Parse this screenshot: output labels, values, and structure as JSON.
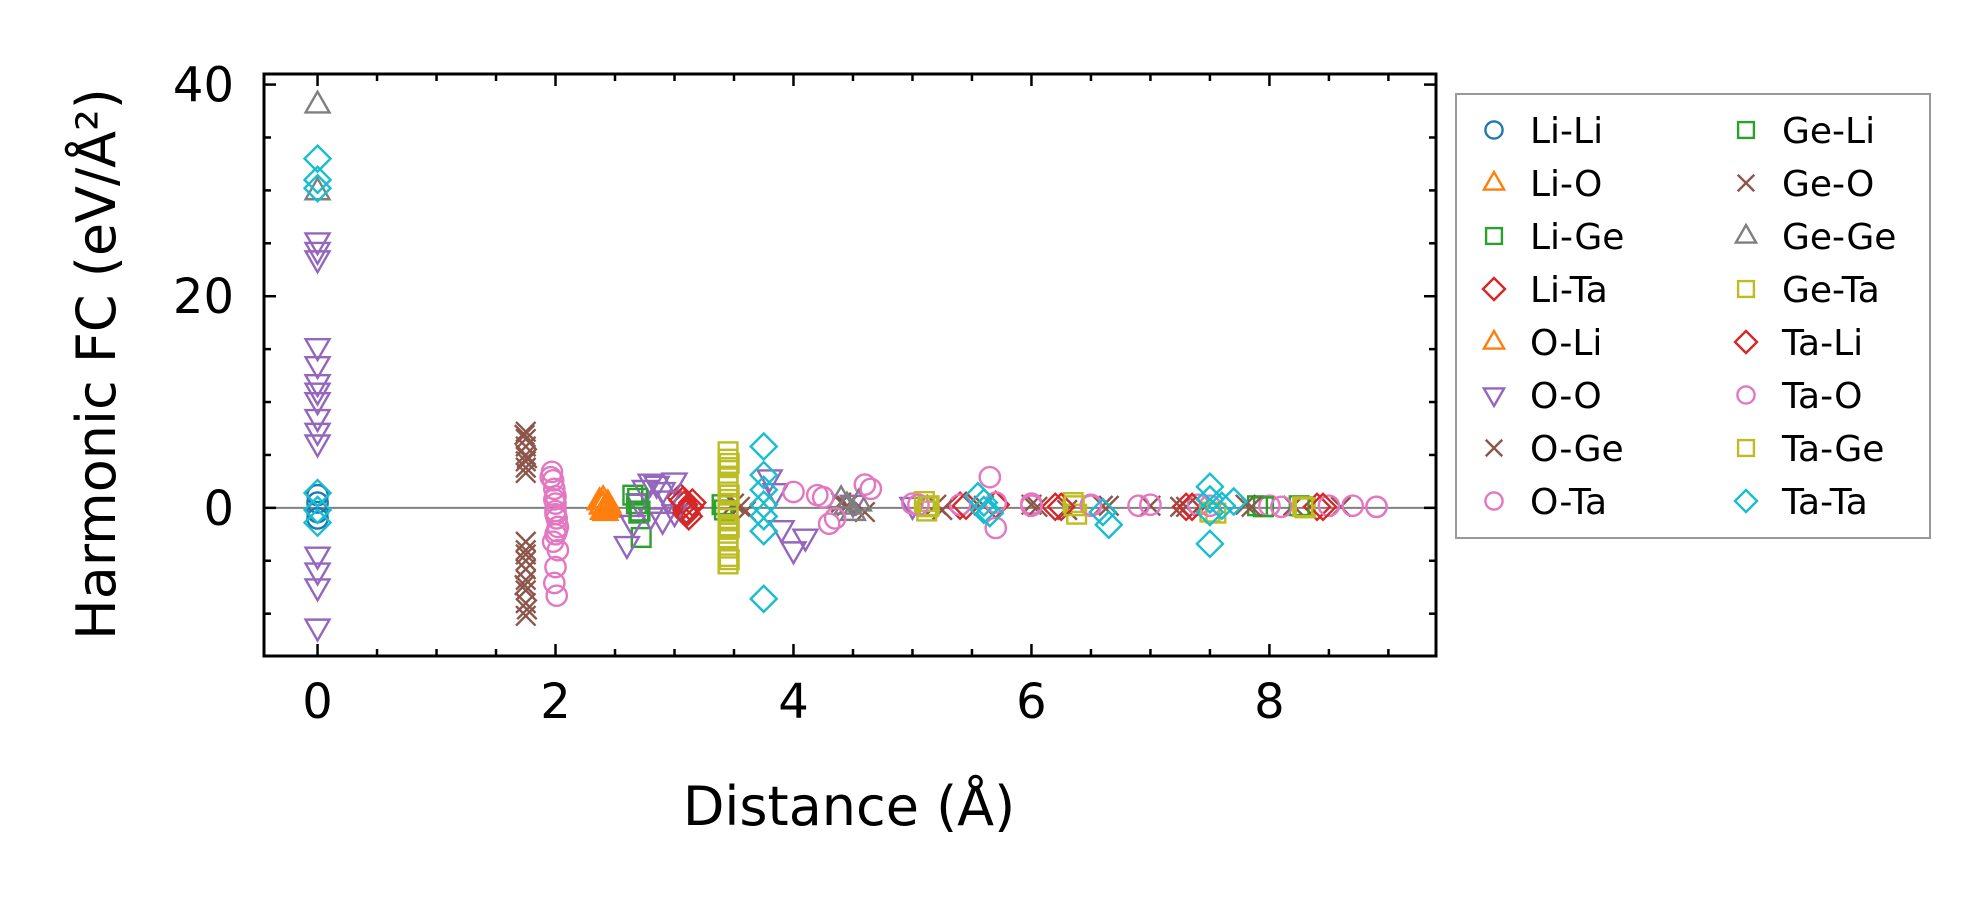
{
  "chart_data": {
    "type": "scatter",
    "title": "",
    "xlabel": "Distance (Å)",
    "ylabel": "Harmonic FC (eV/Å²)",
    "xlim": [
      -0.45,
      9.4
    ],
    "ylim": [
      -14,
      41
    ],
    "xticks": [
      0,
      2,
      4,
      6,
      8
    ],
    "xtick_labels": [
      "0",
      "2",
      "4",
      "6",
      "8"
    ],
    "yticks": [
      0,
      20,
      40
    ],
    "ytick_labels": [
      "0",
      "20",
      "40"
    ],
    "reference_line_y": 0,
    "legend_location": "outside-right",
    "series": [
      {
        "name": "Li-Li",
        "marker": "circle",
        "color": "#1f77b4",
        "x": [
          0,
          0,
          0,
          0
        ],
        "y": [
          1.2,
          0.5,
          -0.4,
          -1.0
        ]
      },
      {
        "name": "Li-O",
        "marker": "triangle-up",
        "color": "#ff7f0e",
        "x": [
          2.4,
          2.4,
          2.41,
          2.42,
          2.43
        ],
        "y": [
          0.8,
          0.3,
          -0.2,
          -0.4,
          0.1
        ]
      },
      {
        "name": "Li-Ge",
        "marker": "square",
        "color": "#2ca02c",
        "x": [
          2.65,
          2.68,
          2.7,
          2.72,
          3.4,
          7.9,
          8.3
        ],
        "y": [
          1.2,
          0.4,
          -0.5,
          -2.8,
          0.3,
          0.2,
          0.1
        ]
      },
      {
        "name": "Li-Ta",
        "marker": "diamond",
        "color": "#d62728",
        "x": [
          3.05,
          3.08,
          3.1,
          3.12,
          3.15,
          5.4,
          5.7,
          6.2,
          7.3,
          8.4
        ],
        "y": [
          1.0,
          0.3,
          -0.2,
          -0.8,
          0.5,
          0.2,
          0.3,
          0.1,
          0.1,
          0.1
        ]
      },
      {
        "name": "O-Li",
        "marker": "triangle-up",
        "color": "#ff7f0e",
        "x": [
          2.37,
          2.39,
          2.4,
          2.44,
          2.46
        ],
        "y": [
          0.6,
          0.2,
          -0.3,
          0.4,
          -0.1
        ]
      },
      {
        "name": "O-O",
        "marker": "triangle-down",
        "color": "#9467bd",
        "x": [
          0,
          0,
          0,
          0,
          0,
          0,
          0,
          0,
          0,
          0,
          0,
          0,
          0,
          0,
          0,
          2.6,
          2.65,
          2.7,
          2.75,
          2.8,
          2.85,
          2.9,
          2.95,
          3.0,
          3.0,
          2.8,
          2.9,
          3.8,
          3.85,
          3.9,
          4.0,
          4.1,
          4.5,
          5.0
        ],
        "y": [
          25.2,
          24.3,
          23.5,
          15.2,
          13.5,
          11.8,
          11.0,
          10.1,
          8.5,
          7.2,
          6.1,
          -4.5,
          -6.0,
          -7.5,
          -11.3,
          -3.5,
          -1.5,
          0.5,
          1.8,
          2.4,
          2.2,
          1.6,
          0.8,
          -0.5,
          2.5,
          -0.8,
          -1.2,
          2.8,
          1.5,
          -2.0,
          -4.0,
          -2.8,
          0.4,
          0.2
        ]
      },
      {
        "name": "O-Ge",
        "marker": "x",
        "color": "#8c564b",
        "x": [
          1.75,
          1.75,
          1.75,
          1.75,
          1.75,
          1.75,
          1.75,
          1.75,
          1.75,
          1.75,
          1.75,
          1.75,
          1.75,
          1.75,
          1.75,
          3.5,
          3.6,
          4.4,
          4.6,
          5.2,
          5.6,
          6.0,
          6.3,
          6.6,
          7.0,
          7.3,
          7.8,
          8.2,
          8.6
        ],
        "y": [
          7.2,
          6.5,
          5.8,
          5.0,
          4.4,
          3.8,
          3.3,
          -3.2,
          -4.0,
          -5.0,
          -5.8,
          -6.8,
          -7.8,
          -9.0,
          -10.2,
          0.4,
          -0.3,
          0.5,
          -0.4,
          0.3,
          0.2,
          0.3,
          -0.2,
          0.2,
          0.2,
          0.1,
          0.3,
          0.2,
          0.1
        ]
      },
      {
        "name": "O-Ta",
        "marker": "circle",
        "color": "#e377c2",
        "x": [
          1.97,
          1.98,
          1.99,
          2.0,
          2.0,
          2.0,
          2.01,
          2.02,
          1.98,
          2.0,
          1.99,
          2.01,
          2.0,
          4.0,
          4.2,
          4.3,
          4.6,
          5.0,
          5.4,
          5.7,
          6.0,
          6.5,
          7.0,
          7.4,
          8.0,
          8.5,
          8.9
        ],
        "y": [
          3.4,
          2.6,
          1.8,
          1.1,
          0.4,
          -0.3,
          -1.0,
          -1.8,
          -3.2,
          -5.6,
          -7.1,
          -8.3,
          -2.5,
          1.5,
          1.2,
          -1.5,
          2.2,
          0.4,
          0.3,
          0.5,
          0.4,
          0.2,
          0.3,
          0.3,
          0.2,
          0.2,
          0.1
        ]
      },
      {
        "name": "Ge-Li",
        "marker": "square",
        "color": "#2ca02c",
        "x": [
          2.69,
          2.71,
          3.42,
          7.95,
          8.25
        ],
        "y": [
          0.9,
          -0.3,
          -0.2,
          0.1,
          0.2
        ]
      },
      {
        "name": "Ge-O",
        "marker": "x",
        "color": "#8c564b",
        "x": [
          1.74,
          1.76,
          1.75,
          1.74,
          1.76,
          3.55,
          4.45,
          5.25,
          6.05,
          6.65,
          7.25,
          7.85
        ],
        "y": [
          6.9,
          4.7,
          -4.4,
          -7.3,
          -9.6,
          0.1,
          0.2,
          -0.2,
          0.1,
          0.2,
          0.1,
          0.1
        ]
      },
      {
        "name": "Ge-Ge",
        "marker": "triangle-up",
        "color": "#7f7f7f",
        "x": [
          0,
          0,
          4.4,
          4.45,
          4.5,
          4.55
        ],
        "y": [
          38.1,
          29.9,
          0.8,
          0.2,
          -0.4,
          0.5
        ]
      },
      {
        "name": "Ge-Ta",
        "marker": "square",
        "color": "#bcbd22",
        "x": [
          3.45,
          3.45,
          3.45,
          3.45,
          3.45,
          3.45,
          3.45,
          3.45,
          3.45,
          3.45,
          3.45,
          3.45,
          3.45,
          3.45,
          3.45,
          3.45,
          5.1,
          5.12,
          5.14,
          6.35,
          6.38,
          7.55,
          8.3
        ],
        "y": [
          5.3,
          4.6,
          3.8,
          3.0,
          2.2,
          1.5,
          0.8,
          0.2,
          -0.4,
          -1.0,
          -1.7,
          -2.4,
          -3.0,
          -3.8,
          -4.6,
          -5.3,
          0.6,
          -0.3,
          0.2,
          0.5,
          -0.6,
          -0.5,
          0.0
        ]
      },
      {
        "name": "Ta-Li",
        "marker": "diamond",
        "color": "#d62728",
        "x": [
          3.07,
          3.1,
          3.13,
          5.45,
          6.25,
          7.35,
          8.45
        ],
        "y": [
          0.7,
          -0.5,
          0.1,
          0.2,
          0.1,
          0.1,
          0.1
        ]
      },
      {
        "name": "Ta-O",
        "marker": "circle",
        "color": "#e377c2",
        "x": [
          1.96,
          1.99,
          2.0,
          2.01,
          2.02,
          4.25,
          4.35,
          4.65,
          5.05,
          5.65,
          5.7,
          6.0,
          6.5,
          6.9,
          7.5,
          8.1,
          8.7,
          8.9
        ],
        "y": [
          2.9,
          0.8,
          -0.6,
          -2.2,
          -4.0,
          1.0,
          -1.0,
          1.8,
          0.3,
          2.9,
          -1.9,
          0.2,
          0.3,
          0.2,
          0.2,
          0.1,
          0.2,
          0.1
        ]
      },
      {
        "name": "Ta-Ge",
        "marker": "square",
        "color": "#bcbd22",
        "x": [
          3.46,
          3.46,
          3.46,
          3.46,
          5.13,
          6.36,
          7.5,
          8.28
        ],
        "y": [
          4.2,
          1.2,
          -1.9,
          -4.9,
          0.1,
          0.2,
          -0.4,
          0.1
        ]
      },
      {
        "name": "Ta-Ta",
        "marker": "diamond",
        "color": "#17becf",
        "x": [
          0,
          0,
          0,
          0,
          0,
          0,
          3.75,
          3.75,
          3.75,
          3.75,
          3.75,
          3.75,
          3.75,
          5.55,
          5.6,
          5.6,
          5.65,
          6.6,
          6.65,
          7.5,
          7.5,
          7.5,
          7.5,
          7.6,
          7.7
        ],
        "y": [
          33.0,
          31.0,
          30.2,
          1.4,
          -0.2,
          -1.4,
          5.8,
          3.1,
          1.7,
          0.3,
          -0.8,
          -2.2,
          -8.6,
          1.1,
          0.5,
          -0.2,
          -0.5,
          -0.4,
          -1.6,
          2.0,
          0.8,
          -0.4,
          -3.4,
          0.2,
          0.6
        ]
      }
    ]
  }
}
